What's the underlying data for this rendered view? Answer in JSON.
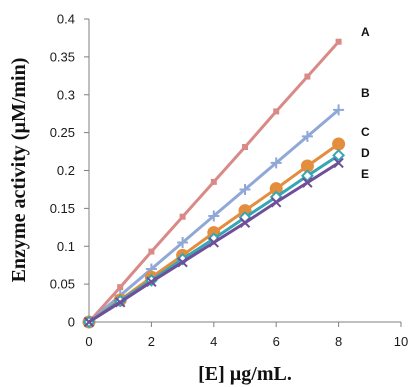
{
  "chart_data": {
    "type": "line",
    "title": "",
    "xlabel": "[E] µg/mL.",
    "ylabel": "Enzyme activity (µM/min)",
    "xlim": [
      0,
      10
    ],
    "ylim": [
      0,
      0.4
    ],
    "xticks": [
      "0",
      "2",
      "4",
      "6",
      "8",
      "10"
    ],
    "yticks": [
      "0",
      "0.05",
      "0.1",
      "0.15",
      "0.2",
      "0.25",
      "0.3",
      "0.35",
      "0.4"
    ],
    "grid": false,
    "legend": "none",
    "x": [
      0,
      1,
      2,
      3,
      4,
      5,
      6,
      7,
      8
    ],
    "series": [
      {
        "name": "A",
        "color": "#d98a87",
        "marker": "square",
        "values": [
          0,
          0.046,
          0.093,
          0.139,
          0.185,
          0.231,
          0.278,
          0.324,
          0.37
        ]
      },
      {
        "name": "B",
        "color": "#8fa8d6",
        "marker": "plus",
        "values": [
          0,
          0.035,
          0.07,
          0.105,
          0.14,
          0.175,
          0.21,
          0.245,
          0.28
        ]
      },
      {
        "name": "C",
        "color": "#e38d3d",
        "marker": "circle",
        "values": [
          0,
          0.029,
          0.059,
          0.088,
          0.118,
          0.147,
          0.176,
          0.206,
          0.235
        ]
      },
      {
        "name": "D",
        "color": "#36a6b4",
        "marker": "diamond",
        "values": [
          0,
          0.028,
          0.055,
          0.083,
          0.11,
          0.138,
          0.165,
          0.193,
          0.22
        ]
      },
      {
        "name": "E",
        "color": "#6f4f9a",
        "marker": "x",
        "values": [
          0,
          0.026,
          0.053,
          0.079,
          0.105,
          0.131,
          0.158,
          0.184,
          0.21
        ]
      }
    ]
  }
}
